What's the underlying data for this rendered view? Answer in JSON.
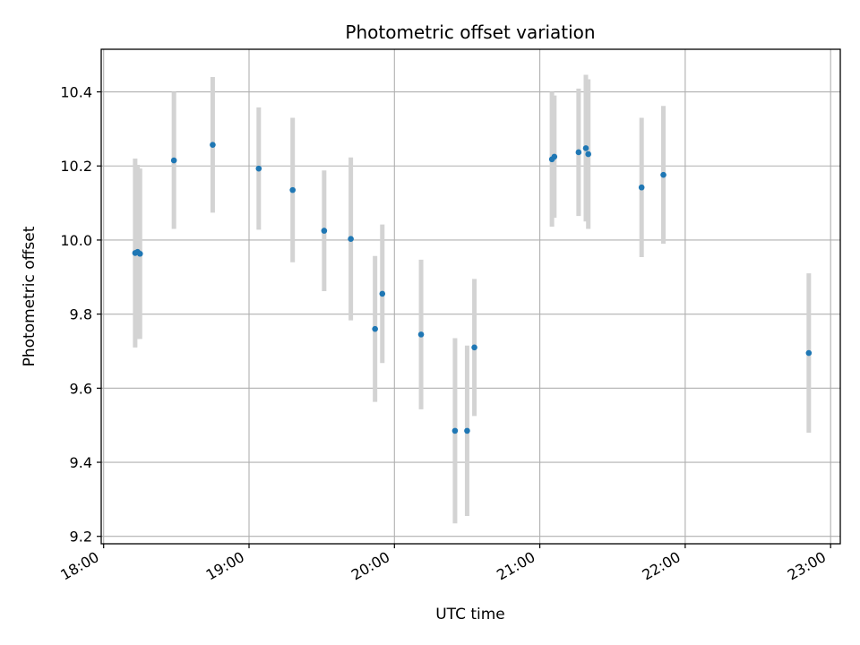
{
  "chart_data": {
    "type": "scatter",
    "title": "Photometric offset variation",
    "xlabel": "UTC time",
    "ylabel": "Photometric offset",
    "x_unit": "UTC",
    "xlim": [
      "17:59",
      "23:04"
    ],
    "ylim": [
      9.18,
      10.515
    ],
    "x_ticks": [
      "18:00",
      "19:00",
      "20:00",
      "21:00",
      "22:00",
      "23:00"
    ],
    "y_ticks": [
      9.2,
      9.4,
      9.6,
      9.8,
      10.0,
      10.2,
      10.4
    ],
    "y_tick_labels": [
      "9.2",
      "9.4",
      "9.6",
      "9.8",
      "10.0",
      "10.2",
      "10.4"
    ],
    "grid": true,
    "colors": {
      "point": "#1f77b4",
      "errorbar": "#d3d3d3",
      "grid": "#b0b0b0"
    },
    "points": [
      {
        "x": "18:13",
        "y": 9.965,
        "err": 0.255
      },
      {
        "x": "18:14",
        "y": 9.968,
        "err": 0.235
      },
      {
        "x": "18:15",
        "y": 9.963,
        "err": 0.23
      },
      {
        "x": "18:29",
        "y": 10.215,
        "err": 0.185
      },
      {
        "x": "18:45",
        "y": 10.257,
        "err": 0.183
      },
      {
        "x": "19:04",
        "y": 10.193,
        "err": 0.165
      },
      {
        "x": "19:18",
        "y": 10.135,
        "err": 0.195
      },
      {
        "x": "19:31",
        "y": 10.025,
        "err": 0.163
      },
      {
        "x": "19:42",
        "y": 10.003,
        "err": 0.22
      },
      {
        "x": "19:52",
        "y": 9.76,
        "err": 0.197
      },
      {
        "x": "19:55",
        "y": 9.855,
        "err": 0.187
      },
      {
        "x": "20:11",
        "y": 9.745,
        "err": 0.202
      },
      {
        "x": "20:25",
        "y": 9.485,
        "err": 0.25
      },
      {
        "x": "20:30",
        "y": 9.485,
        "err": 0.23
      },
      {
        "x": "20:33",
        "y": 9.71,
        "err": 0.185
      },
      {
        "x": "21:05",
        "y": 10.218,
        "err": 0.182
      },
      {
        "x": "21:06",
        "y": 10.225,
        "err": 0.165
      },
      {
        "x": "21:16",
        "y": 10.237,
        "err": 0.172
      },
      {
        "x": "21:19",
        "y": 10.248,
        "err": 0.198
      },
      {
        "x": "21:20",
        "y": 10.232,
        "err": 0.202
      },
      {
        "x": "21:42",
        "y": 10.142,
        "err": 0.188
      },
      {
        "x": "21:51",
        "y": 10.176,
        "err": 0.186
      },
      {
        "x": "22:51",
        "y": 9.695,
        "err": 0.215
      }
    ]
  }
}
